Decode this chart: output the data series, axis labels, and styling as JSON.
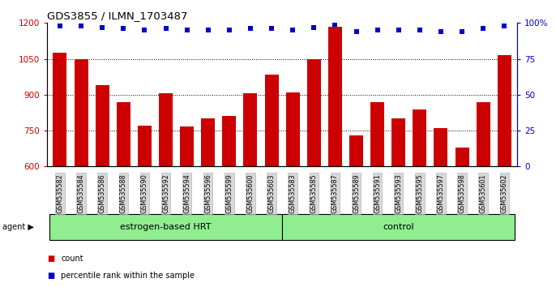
{
  "title": "GDS3855 / ILMN_1703487",
  "samples": [
    "GSM535582",
    "GSM535584",
    "GSM535586",
    "GSM535588",
    "GSM535590",
    "GSM535592",
    "GSM535594",
    "GSM535596",
    "GSM535599",
    "GSM535600",
    "GSM535603",
    "GSM535583",
    "GSM535585",
    "GSM535587",
    "GSM535589",
    "GSM535591",
    "GSM535593",
    "GSM535595",
    "GSM535597",
    "GSM535598",
    "GSM535601",
    "GSM535602"
  ],
  "counts": [
    1075,
    1047,
    940,
    870,
    770,
    905,
    768,
    800,
    812,
    905,
    985,
    910,
    1050,
    1185,
    730,
    870,
    800,
    840,
    760,
    680,
    870,
    1065
  ],
  "percentiles": [
    98,
    98,
    97,
    96,
    95,
    96,
    95,
    95,
    95,
    96,
    96,
    95,
    97,
    99,
    94,
    95,
    95,
    95,
    94,
    94,
    96,
    98
  ],
  "groups": [
    {
      "label": "estrogen-based HRT",
      "start": 0,
      "end": 11,
      "color": "#90ee90"
    },
    {
      "label": "control",
      "start": 11,
      "end": 22,
      "color": "#90ee90"
    }
  ],
  "bar_color": "#cc0000",
  "dot_color": "#0000cc",
  "ylim_left": [
    600,
    1200
  ],
  "ylim_right": [
    0,
    100
  ],
  "yticks_left": [
    600,
    750,
    900,
    1050,
    1200
  ],
  "yticks_right": [
    0,
    25,
    50,
    75,
    100
  ],
  "ytick_labels_left": [
    "600",
    "750",
    "900",
    "1050",
    "1200"
  ],
  "ytick_labels_right": [
    "0",
    "25",
    "50",
    "75",
    "100%"
  ],
  "grid_values": [
    750,
    900,
    1050
  ],
  "agent_label": "agent",
  "legend_items": [
    {
      "color": "#cc0000",
      "label": "count"
    },
    {
      "color": "#0000cc",
      "label": "percentile rank within the sample"
    }
  ]
}
